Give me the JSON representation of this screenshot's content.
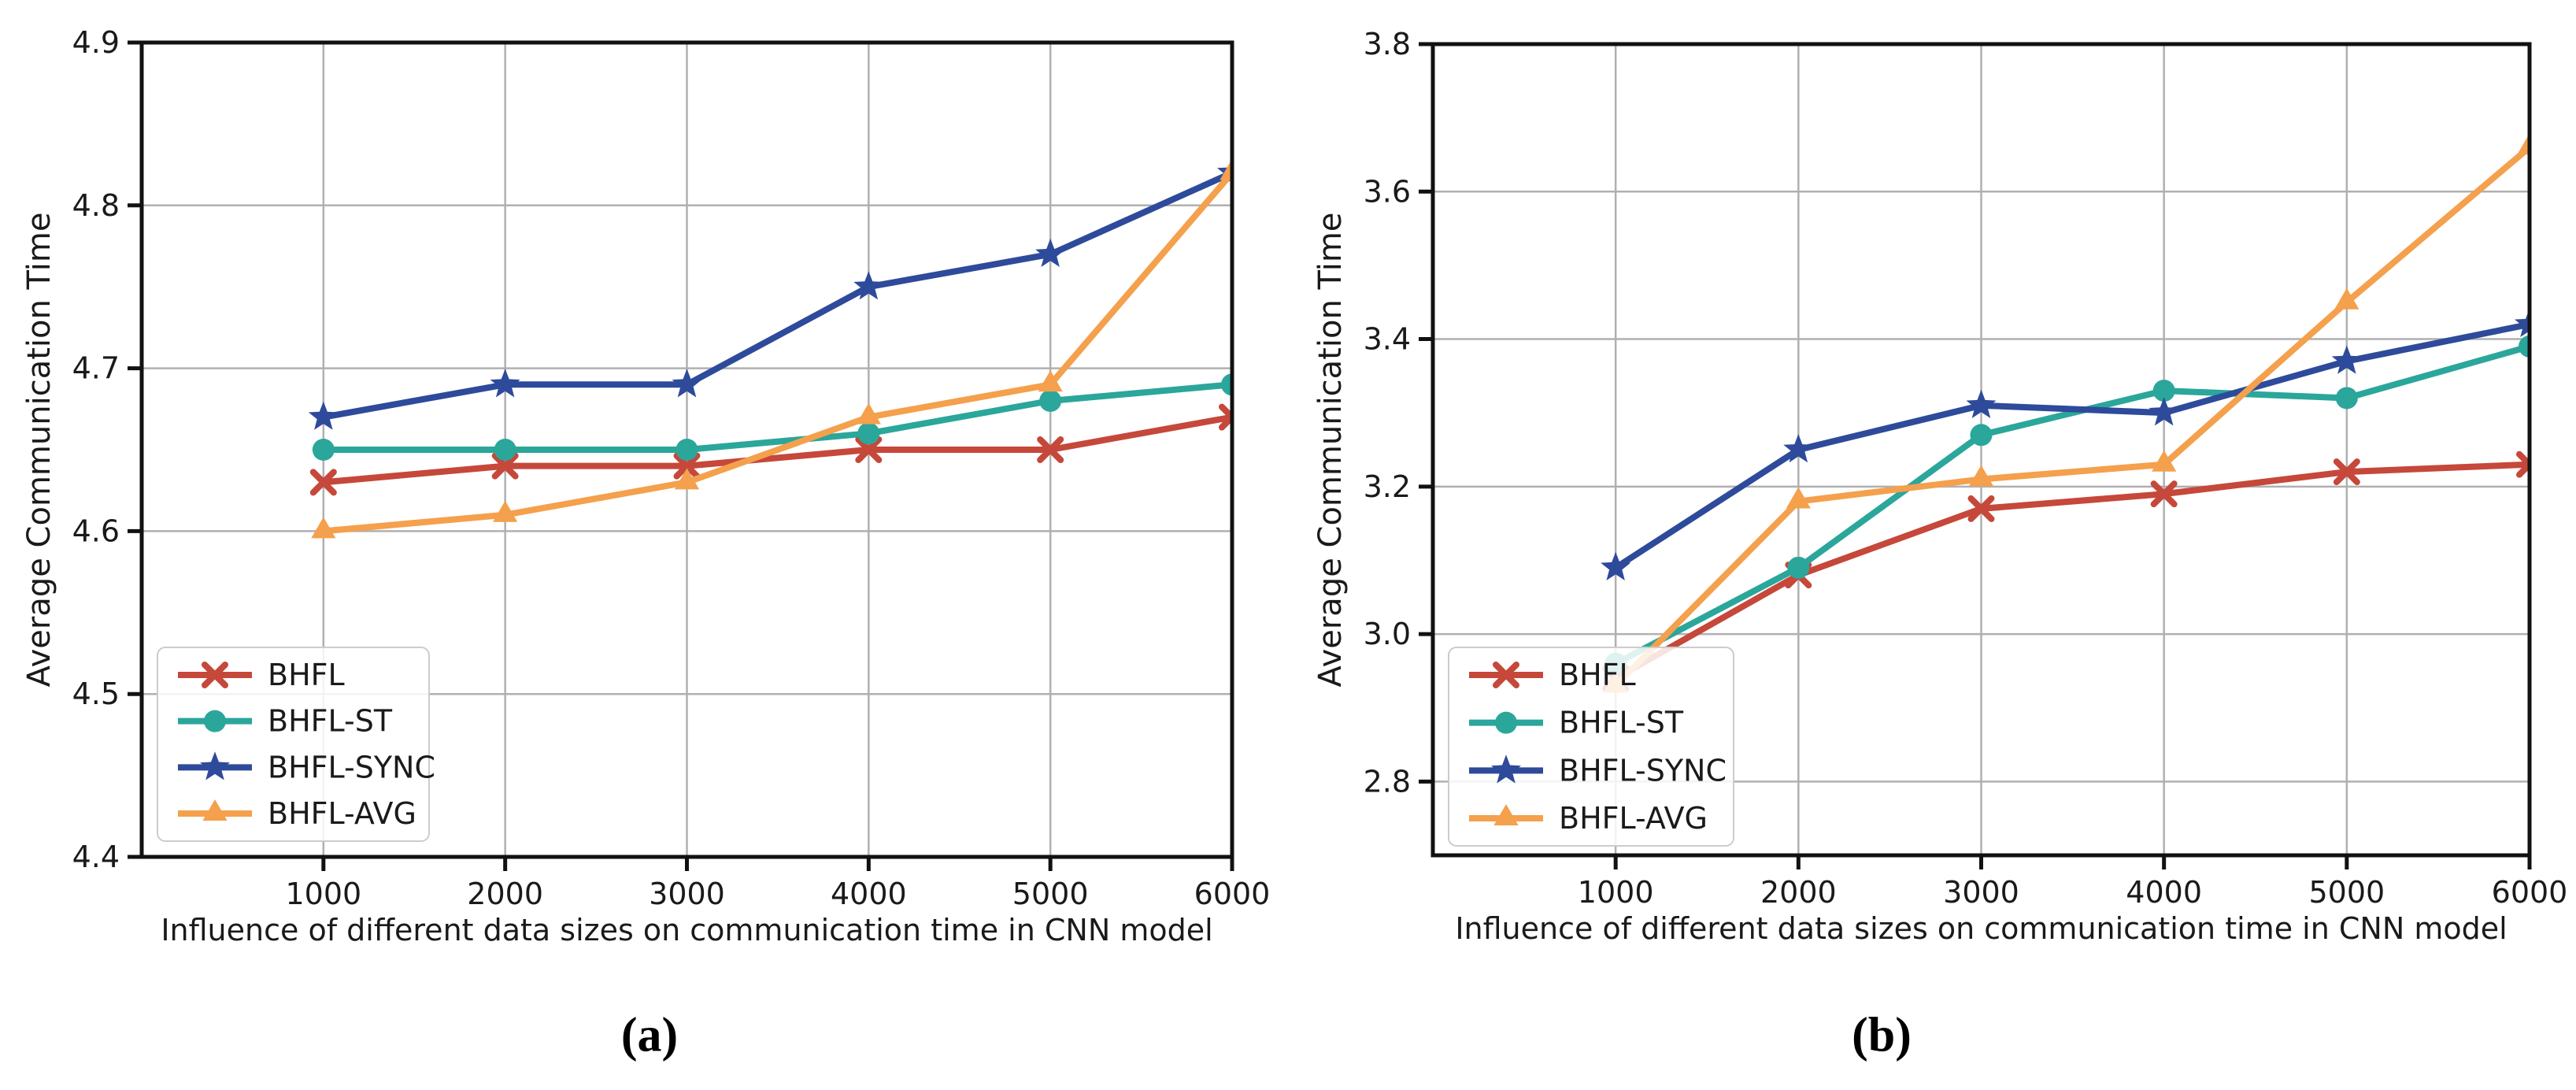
{
  "figure": {
    "background": "#ffffff",
    "text_color": "#1a1a1a"
  },
  "style": {
    "grid_color": "#b0b0b0",
    "axis_color": "#111111",
    "legend_bg": "#ffffff",
    "legend_border": "#cccccc"
  },
  "chart_data": [
    {
      "type": "line",
      "caption": "(a)",
      "xlabel": "Influence of different data sizes on communication time in CNN model",
      "ylabel": "Average Communication Time",
      "x": [
        1000,
        2000,
        3000,
        4000,
        5000,
        6000
      ],
      "xtick_labels": [
        "1000",
        "2000",
        "3000",
        "4000",
        "5000",
        "6000"
      ],
      "xlim": [
        0,
        6000
      ],
      "ylim": [
        4.4,
        4.9
      ],
      "yticks": [
        4.4,
        4.5,
        4.6,
        4.7,
        4.8,
        4.9
      ],
      "ytick_labels": [
        "4.4",
        "4.5",
        "4.6",
        "4.7",
        "4.8",
        "4.9"
      ],
      "grid": true,
      "legend_position": "lower left",
      "series": [
        {
          "name": "BHFL",
          "marker": "x",
          "color": "#c5483a",
          "values": [
            4.63,
            4.64,
            4.64,
            4.65,
            4.65,
            4.67
          ]
        },
        {
          "name": "BHFL-ST",
          "marker": "circle",
          "color": "#2ba69b",
          "values": [
            4.65,
            4.65,
            4.65,
            4.66,
            4.68,
            4.69
          ]
        },
        {
          "name": "BHFL-SYNC",
          "marker": "star",
          "color": "#2e4a9b",
          "values": [
            4.67,
            4.69,
            4.69,
            4.75,
            4.77,
            4.82
          ]
        },
        {
          "name": "BHFL-AVG",
          "marker": "triangle",
          "color": "#f4a04c",
          "values": [
            4.6,
            4.61,
            4.63,
            4.67,
            4.69,
            4.82
          ]
        }
      ]
    },
    {
      "type": "line",
      "caption": "(b)",
      "xlabel": "Influence of different data sizes on communication time in CNN model",
      "ylabel": "Average Communication Time",
      "x": [
        1000,
        2000,
        3000,
        4000,
        5000,
        6000
      ],
      "xtick_labels": [
        "1000",
        "2000",
        "3000",
        "4000",
        "5000",
        "6000"
      ],
      "xlim": [
        0,
        6000
      ],
      "ylim": [
        2.7,
        3.8
      ],
      "yticks": [
        2.8,
        3.0,
        3.2,
        3.4,
        3.6,
        3.8
      ],
      "ytick_labels": [
        "2.8",
        "3.0",
        "3.2",
        "3.4",
        "3.6",
        "3.8"
      ],
      "grid": true,
      "legend_position": "lower left",
      "series": [
        {
          "name": "BHFL",
          "marker": "x",
          "color": "#c5483a",
          "values": [
            2.94,
            3.08,
            3.17,
            3.19,
            3.22,
            3.23
          ]
        },
        {
          "name": "BHFL-ST",
          "marker": "circle",
          "color": "#2ba69b",
          "values": [
            2.96,
            3.09,
            3.27,
            3.33,
            3.32,
            3.39
          ]
        },
        {
          "name": "BHFL-SYNC",
          "marker": "star",
          "color": "#2e4a9b",
          "values": [
            3.09,
            3.25,
            3.31,
            3.3,
            3.37,
            3.42
          ]
        },
        {
          "name": "BHFL-AVG",
          "marker": "triangle",
          "color": "#f4a04c",
          "values": [
            2.93,
            3.18,
            3.21,
            3.23,
            3.45,
            3.66
          ]
        }
      ]
    }
  ]
}
